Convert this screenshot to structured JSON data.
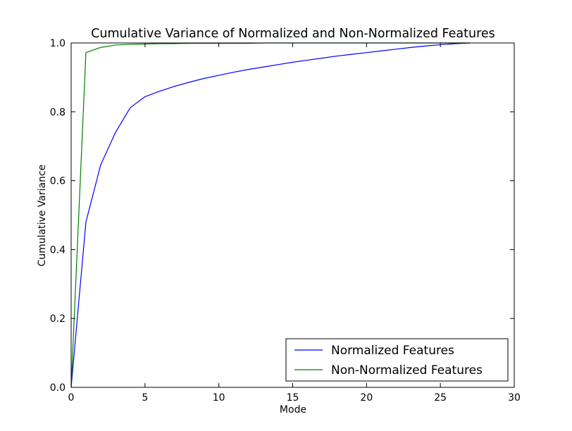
{
  "chart_data": {
    "type": "line",
    "title": "Cumulative Variance of Normalized and Non-Normalized Features",
    "xlabel": "Mode",
    "ylabel": "Cumulative Variance",
    "xlim": [
      0,
      30
    ],
    "ylim": [
      0,
      1.0
    ],
    "xticks": [
      0,
      5,
      10,
      15,
      20,
      25,
      30
    ],
    "xtick_labels": [
      "0",
      "5",
      "10",
      "15",
      "20",
      "25",
      "30"
    ],
    "yticks": [
      0,
      0.2,
      0.4,
      0.6,
      0.8,
      1.0
    ],
    "ytick_labels": [
      "0.0",
      "0.2",
      "0.4",
      "0.6",
      "0.8",
      "1.0"
    ],
    "grid": false,
    "legend_position": "bottom-right",
    "series": [
      {
        "name": "Normalized Features",
        "color": "#0000ff",
        "x": [
          0,
          1,
          2,
          3,
          4,
          5,
          6,
          7,
          8,
          9,
          10,
          11,
          12,
          13,
          14,
          15,
          16,
          17,
          18,
          19,
          20,
          21,
          22,
          23,
          24,
          25,
          26,
          27
        ],
        "values": [
          0.0,
          0.48,
          0.646,
          0.74,
          0.812,
          0.844,
          0.86,
          0.874,
          0.886,
          0.897,
          0.906,
          0.915,
          0.923,
          0.93,
          0.937,
          0.944,
          0.95,
          0.956,
          0.962,
          0.967,
          0.972,
          0.977,
          0.982,
          0.987,
          0.991,
          0.995,
          0.998,
          1.0
        ]
      },
      {
        "name": "Non-Normalized Features",
        "color": "#008000",
        "x": [
          0,
          1,
          2,
          3,
          4,
          5,
          6,
          7,
          8,
          9,
          10,
          11,
          12,
          13,
          14,
          15,
          16,
          17,
          18,
          19,
          20,
          21,
          22,
          23,
          24,
          25,
          26,
          27
        ],
        "values": [
          0.0,
          0.972,
          0.987,
          0.994,
          0.996,
          0.997,
          0.998,
          0.998,
          0.999,
          0.999,
          0.999,
          0.999,
          0.999,
          1.0,
          1.0,
          1.0,
          1.0,
          1.0,
          1.0,
          1.0,
          1.0,
          1.0,
          1.0,
          1.0,
          1.0,
          1.0,
          1.0,
          1.0
        ]
      }
    ]
  }
}
